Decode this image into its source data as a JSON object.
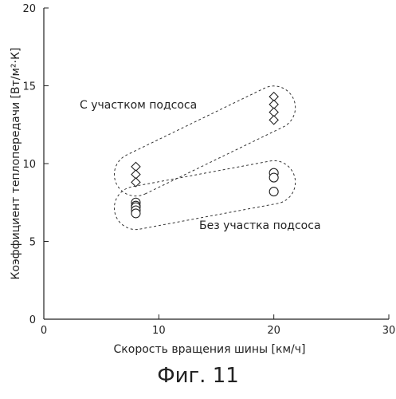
{
  "chart_data": {
    "type": "scatter",
    "xlabel": "Скорость вращения шины [км/ч]",
    "ylabel": "Коэффициент теплопередачи [Вт/м²·К]",
    "xlim": [
      0,
      30
    ],
    "ylim": [
      0,
      20
    ],
    "x_ticks": [
      0,
      10,
      20,
      30
    ],
    "y_ticks": [
      0,
      5,
      10,
      15,
      20
    ],
    "grid": false,
    "series": [
      {
        "name": "С участком подсоса",
        "marker": "diamond",
        "points": [
          [
            8,
            9.8
          ],
          [
            8,
            9.3
          ],
          [
            8,
            8.8
          ],
          [
            20,
            14.3
          ],
          [
            20,
            13.8
          ],
          [
            20,
            13.3
          ],
          [
            20,
            12.8
          ]
        ]
      },
      {
        "name": "Без участка подсоса",
        "marker": "circle",
        "points": [
          [
            8,
            7.5
          ],
          [
            8,
            7.3
          ],
          [
            8,
            7.2
          ],
          [
            8,
            7.0
          ],
          [
            8,
            6.8
          ],
          [
            20,
            9.4
          ],
          [
            20,
            9.1
          ],
          [
            20,
            8.2
          ]
        ]
      }
    ],
    "annotations": [
      "С участком подсоса",
      "Без участка подсоса"
    ]
  },
  "caption": "Фиг. 11"
}
